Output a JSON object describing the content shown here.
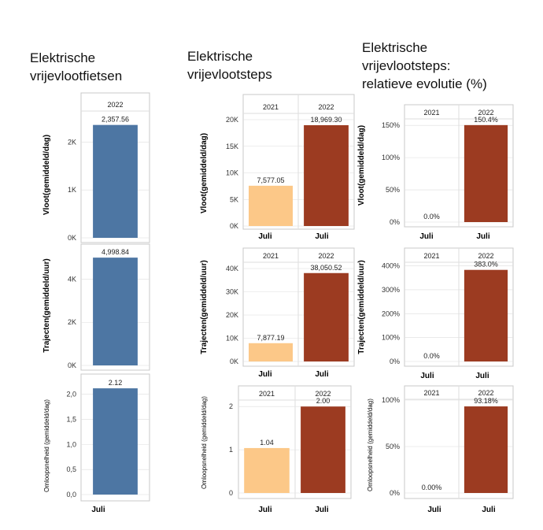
{
  "titles": {
    "col1": [
      "Elektrische",
      "vrijevlootfietsen"
    ],
    "col2": [
      "Elektrische",
      "vrijevlootsteps"
    ],
    "col3": [
      "Elektrische",
      "vrijevlootsteps:",
      "relatieve evolutie (%)"
    ]
  },
  "colors": {
    "blue": "#4d76a3",
    "orange": "#fcc888",
    "red": "#9c3b21",
    "grid": "#dedede",
    "frame": "#c8c8c8"
  },
  "chart_data": [
    {
      "id": "fietsen-vloot",
      "type": "bar",
      "ylabel": "Vloot(gemiddeld/dag)",
      "columns": [
        "2022"
      ],
      "x_label": "",
      "values": [
        2357.56
      ],
      "data_labels": [
        "2,357.56"
      ],
      "ylim": [
        0,
        2500
      ],
      "ticks": [
        0,
        1000,
        2000
      ],
      "tick_labels": [
        "0K",
        "1K",
        "2K"
      ]
    },
    {
      "id": "fietsen-trajecten",
      "type": "bar",
      "ylabel": "Trajecten(gemiddeld/uur)",
      "columns": [],
      "x_label": "",
      "values": [
        4998.84
      ],
      "data_labels": [
        "4,998.84"
      ],
      "ylim": [
        0,
        5150
      ],
      "ticks": [
        0,
        2000,
        4000
      ],
      "tick_labels": [
        "0K",
        "2K",
        "4K"
      ]
    },
    {
      "id": "fietsen-omloop",
      "type": "bar",
      "ylabel": "Omloopsnelheid (gemiddeld/dag)",
      "columns": [],
      "x_label": "Juli",
      "values": [
        2.12
      ],
      "data_labels": [
        "2.12"
      ],
      "ylim": [
        0,
        2.2
      ],
      "ticks": [
        0,
        0.5,
        1,
        1.5,
        2
      ],
      "tick_labels": [
        "0,0",
        "0,5",
        "1,0",
        "1,5",
        "2,0"
      ]
    },
    {
      "id": "steps-vloot",
      "type": "bar",
      "ylabel": "Vloot(gemiddeld/dag)",
      "columns": [
        "2021",
        "2022"
      ],
      "x_labels": [
        "Juli",
        "Juli"
      ],
      "values": [
        7577.05,
        18969.3
      ],
      "data_labels": [
        "7,577.05",
        "18,969.30"
      ],
      "ylim": [
        0,
        20000
      ],
      "ticks": [
        0,
        5000,
        10000,
        15000,
        20000
      ],
      "tick_labels": [
        "0K",
        "5K",
        "10K",
        "15K",
        "20K"
      ]
    },
    {
      "id": "steps-trajecten",
      "type": "bar",
      "ylabel": "Trajecten(gemiddeld/uur)",
      "columns": [
        "2021",
        "2022"
      ],
      "x_labels": [
        "Juli",
        "Juli"
      ],
      "values": [
        7877.19,
        38050.52
      ],
      "data_labels": [
        "7,877.19",
        "38,050.52"
      ],
      "ylim": [
        0,
        40000
      ],
      "ticks": [
        0,
        10000,
        20000,
        30000,
        40000
      ],
      "tick_labels": [
        "0K",
        "10K",
        "20K",
        "30K",
        "40K"
      ]
    },
    {
      "id": "steps-omloop",
      "type": "bar",
      "ylabel": "Omloopsnelheid (gemiddeld/dag)",
      "columns": [
        "2021",
        "2022"
      ],
      "x_labels": [
        "Juli",
        "Juli"
      ],
      "values": [
        1.04,
        2.0
      ],
      "data_labels": [
        "1.04",
        "2.00"
      ],
      "ylim": [
        0,
        2.15
      ],
      "ticks": [
        0,
        1,
        2
      ],
      "tick_labels": [
        "0",
        "1",
        "2"
      ]
    },
    {
      "id": "evolutie-vloot",
      "type": "bar",
      "ylabel": "Vloot(gemiddeld/dag)",
      "columns": [
        "2021",
        "2022"
      ],
      "x_labels": [
        "Juli",
        "Juli"
      ],
      "values": [
        0.0,
        150.4
      ],
      "data_labels": [
        "0.0%",
        "150.4%"
      ],
      "ylim": [
        0,
        160
      ],
      "ticks": [
        0,
        50,
        100,
        150
      ],
      "tick_labels": [
        "0%",
        "50%",
        "100%",
        "150%"
      ]
    },
    {
      "id": "evolutie-trajecten",
      "type": "bar",
      "ylabel": "Trajecten(gemiddeld/uur)",
      "columns": [
        "2021",
        "2022"
      ],
      "x_labels": [
        "Juli",
        "Juli"
      ],
      "values": [
        0.0,
        383.0
      ],
      "data_labels": [
        "0.0%",
        "383.0%"
      ],
      "ylim": [
        0,
        415
      ],
      "ticks": [
        0,
        100,
        200,
        300,
        400
      ],
      "tick_labels": [
        "0%",
        "100%",
        "200%",
        "300%",
        "400%"
      ]
    },
    {
      "id": "evolutie-omloop",
      "type": "bar",
      "ylabel": "Omloopsnelheid (gemiddeld/dag)",
      "columns": [
        "2021",
        "2022"
      ],
      "x_labels": [
        "Juli",
        "Juli"
      ],
      "values": [
        0.0,
        93.18
      ],
      "data_labels": [
        "0.00%",
        "93.18%"
      ],
      "ylim": [
        0,
        100
      ],
      "ticks": [
        0,
        50,
        100
      ],
      "tick_labels": [
        "0%",
        "50%",
        "100%"
      ]
    }
  ]
}
